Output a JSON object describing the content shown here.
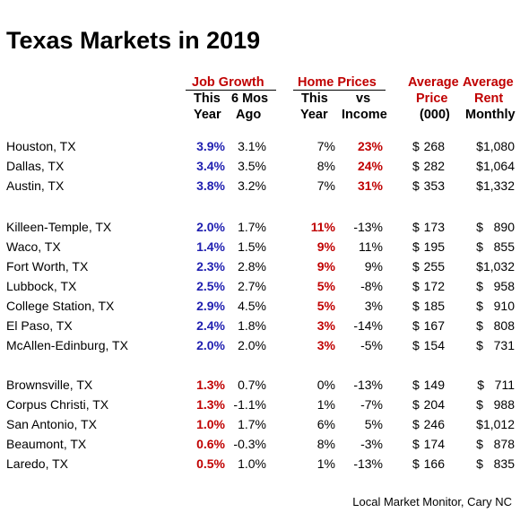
{
  "title": "Texas Markets in 2019",
  "headers": {
    "job_growth": "Job Growth",
    "job_this_1": "This",
    "job_this_2": "Year",
    "job_6mos_1": "6 Mos",
    "job_6mos_2": "Ago",
    "home_prices": "Home Prices",
    "hp_this_1": "This",
    "hp_this_2": "Year",
    "hp_vs_1": "vs",
    "hp_vs_2": "Income",
    "avg_price_1": "Average",
    "avg_price_2": "Price",
    "avg_price_3": "(000)",
    "avg_rent_1": "Average",
    "avg_rent_2": "Rent",
    "avg_rent_3": "Monthly"
  },
  "colors": {
    "red": "#c00000",
    "blue": "#1f1fb0"
  },
  "rows": [
    {
      "city": "Houston, TX",
      "job_this": "3.9%",
      "job_color": "blue",
      "job_6mo": "3.1%",
      "hp_this": "7%",
      "hp_this_emph": false,
      "hp_vs": "23%",
      "hp_vs_emph": true,
      "dollar": "$",
      "price": "268",
      "rent": "$1,080"
    },
    {
      "city": "Dallas, TX",
      "job_this": "3.4%",
      "job_color": "blue",
      "job_6mo": "3.5%",
      "hp_this": "8%",
      "hp_this_emph": false,
      "hp_vs": "24%",
      "hp_vs_emph": true,
      "dollar": "$",
      "price": "282",
      "rent": "$1,064"
    },
    {
      "city": "Austin, TX",
      "job_this": "3.8%",
      "job_color": "blue",
      "job_6mo": "3.2%",
      "hp_this": "7%",
      "hp_this_emph": false,
      "hp_vs": "31%",
      "hp_vs_emph": true,
      "dollar": "$",
      "price": "353",
      "rent": "$1,332"
    },
    {
      "city": "Killeen-Temple, TX",
      "job_this": "2.0%",
      "job_color": "blue",
      "job_6mo": "1.7%",
      "hp_this": "11%",
      "hp_this_emph": true,
      "hp_vs": "-13%",
      "hp_vs_emph": false,
      "dollar": "$",
      "price": "173",
      "rent": "$   890"
    },
    {
      "city": "Waco, TX",
      "job_this": "1.4%",
      "job_color": "blue",
      "job_6mo": "1.5%",
      "hp_this": "9%",
      "hp_this_emph": true,
      "hp_vs": "11%",
      "hp_vs_emph": false,
      "dollar": "$",
      "price": "195",
      "rent": "$   855"
    },
    {
      "city": "Fort Worth, TX",
      "job_this": "2.3%",
      "job_color": "blue",
      "job_6mo": "2.8%",
      "hp_this": "9%",
      "hp_this_emph": true,
      "hp_vs": "9%",
      "hp_vs_emph": false,
      "dollar": "$",
      "price": "255",
      "rent": "$1,032"
    },
    {
      "city": "Lubbock, TX",
      "job_this": "2.5%",
      "job_color": "blue",
      "job_6mo": "2.7%",
      "hp_this": "5%",
      "hp_this_emph": true,
      "hp_vs": "-8%",
      "hp_vs_emph": false,
      "dollar": "$",
      "price": "172",
      "rent": "$   958"
    },
    {
      "city": "College Station, TX",
      "job_this": "2.9%",
      "job_color": "blue",
      "job_6mo": "4.5%",
      "hp_this": "5%",
      "hp_this_emph": true,
      "hp_vs": "3%",
      "hp_vs_emph": false,
      "dollar": "$",
      "price": "185",
      "rent": "$   910"
    },
    {
      "city": "El Paso, TX",
      "job_this": "2.4%",
      "job_color": "blue",
      "job_6mo": "1.8%",
      "hp_this": "3%",
      "hp_this_emph": true,
      "hp_vs": "-14%",
      "hp_vs_emph": false,
      "dollar": "$",
      "price": "167",
      "rent": "$   808"
    },
    {
      "city": "McAllen-Edinburg, TX",
      "job_this": "2.0%",
      "job_color": "blue",
      "job_6mo": "2.0%",
      "hp_this": "3%",
      "hp_this_emph": true,
      "hp_vs": "-5%",
      "hp_vs_emph": false,
      "dollar": "$",
      "price": "154",
      "rent": "$   731"
    },
    {
      "city": "Brownsville, TX",
      "job_this": "1.3%",
      "job_color": "red",
      "job_6mo": "0.7%",
      "hp_this": "0%",
      "hp_this_emph": false,
      "hp_vs": "-13%",
      "hp_vs_emph": false,
      "dollar": "$",
      "price": "149",
      "rent": "$   711"
    },
    {
      "city": "Corpus Christi, TX",
      "job_this": "1.3%",
      "job_color": "red",
      "job_6mo": "-1.1%",
      "hp_this": "1%",
      "hp_this_emph": false,
      "hp_vs": "-7%",
      "hp_vs_emph": false,
      "dollar": "$",
      "price": "204",
      "rent": "$   988"
    },
    {
      "city": "San Antonio, TX",
      "job_this": "1.0%",
      "job_color": "red",
      "job_6mo": "1.7%",
      "hp_this": "6%",
      "hp_this_emph": false,
      "hp_vs": "5%",
      "hp_vs_emph": false,
      "dollar": "$",
      "price": "246",
      "rent": "$1,012"
    },
    {
      "city": "Beaumont, TX",
      "job_this": "0.6%",
      "job_color": "red",
      "job_6mo": "-0.3%",
      "hp_this": "8%",
      "hp_this_emph": false,
      "hp_vs": "-3%",
      "hp_vs_emph": false,
      "dollar": "$",
      "price": "174",
      "rent": "$   878"
    },
    {
      "city": "Laredo, TX",
      "job_this": "0.5%",
      "job_color": "red",
      "job_6mo": "1.0%",
      "hp_this": "1%",
      "hp_this_emph": false,
      "hp_vs": "-13%",
      "hp_vs_emph": false,
      "dollar": "$",
      "price": "166",
      "rent": "$   835"
    }
  ],
  "source": "Local Market Monitor, Cary NC"
}
